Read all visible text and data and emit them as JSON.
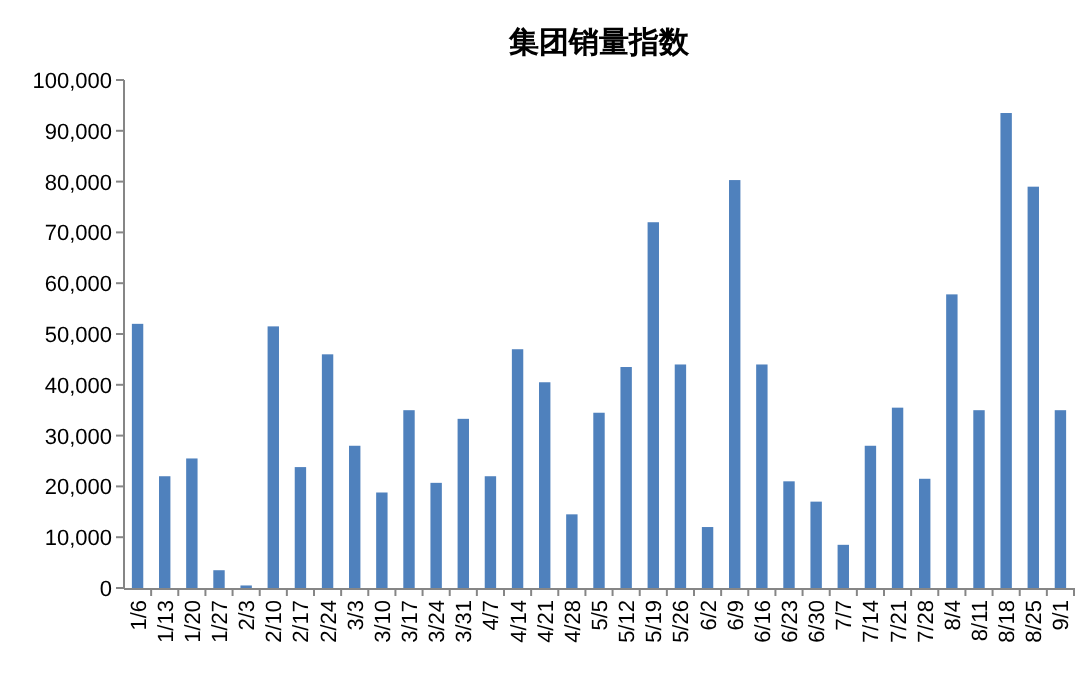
{
  "chart_data": {
    "type": "bar",
    "title": "集团销量指数",
    "categories": [
      "1/6",
      "1/13",
      "1/20",
      "1/27",
      "2/3",
      "2/10",
      "2/17",
      "2/24",
      "3/3",
      "3/10",
      "3/17",
      "3/24",
      "3/31",
      "4/7",
      "4/14",
      "4/21",
      "4/28",
      "5/5",
      "5/12",
      "5/19",
      "5/26",
      "6/2",
      "6/9",
      "6/16",
      "6/23",
      "6/30",
      "7/7",
      "7/14",
      "7/21",
      "7/28",
      "8/4",
      "8/11",
      "8/18",
      "8/25",
      "9/1"
    ],
    "values": [
      52000,
      22000,
      25500,
      3500,
      500,
      51500,
      23800,
      46000,
      28000,
      18800,
      35000,
      20700,
      33300,
      22000,
      47000,
      40500,
      14500,
      34500,
      43500,
      72000,
      44000,
      12000,
      80300,
      44000,
      21000,
      17000,
      8500,
      28000,
      35500,
      21500,
      57800,
      35000,
      93500,
      79000,
      35000
    ],
    "color": "#4f81bd",
    "ylim": [
      0,
      100000
    ],
    "yticks": [
      0,
      {
        "value": 10000,
        "label": "10,000"
      },
      {
        "value": 20000,
        "label": "20,000"
      },
      {
        "value": 30000,
        "label": "30,000"
      },
      {
        "value": 40000,
        "label": "40,000"
      },
      {
        "value": 50000,
        "label": "50,000"
      },
      {
        "value": 60000,
        "label": "60,000"
      },
      {
        "value": 70000,
        "label": "70,000"
      },
      {
        "value": 80000,
        "label": "80,000"
      },
      {
        "value": 90000,
        "label": "90,000"
      },
      {
        "value": 100000,
        "label": "100,000"
      }
    ],
    "grid": false
  }
}
